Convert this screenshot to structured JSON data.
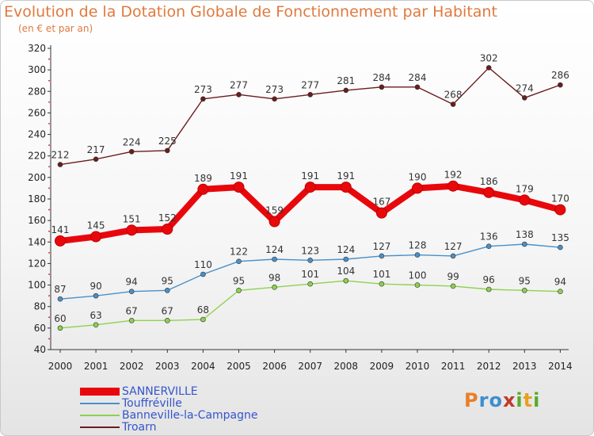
{
  "title": "Evolution de la Dotation Globale de Fonctionnement par Habitant",
  "subtitle": "(en € et par an)",
  "brand": "Proxiti",
  "chart_data": {
    "type": "line",
    "x": [
      "2000",
      "2001",
      "2002",
      "2003",
      "2004",
      "2005",
      "2006",
      "2007",
      "2008",
      "2009",
      "2010",
      "2011",
      "2012",
      "2013",
      "2014"
    ],
    "ylim": [
      40,
      320
    ],
    "yticks": [
      40,
      60,
      80,
      100,
      120,
      140,
      160,
      180,
      200,
      220,
      240,
      260,
      280,
      300,
      320
    ],
    "grid": false,
    "legend_position": "bottom-left",
    "series": [
      {
        "name": "SANNERVILLE",
        "color": "#e8080c",
        "values": [
          141,
          145,
          151,
          152,
          189,
          191,
          159,
          191,
          191,
          167,
          190,
          192,
          186,
          179,
          170
        ]
      },
      {
        "name": "Touffréville",
        "color": "#4a90c8",
        "values": [
          87,
          90,
          94,
          95,
          110,
          122,
          124,
          123,
          124,
          127,
          128,
          127,
          136,
          138,
          135
        ]
      },
      {
        "name": "Banneville-la-Campagne",
        "color": "#8fd14f",
        "values": [
          60,
          63,
          67,
          67,
          68,
          95,
          98,
          101,
          104,
          101,
          100,
          99,
          96,
          95,
          94
        ]
      },
      {
        "name": "Troarn",
        "color": "#6b1c1c",
        "values": [
          212,
          217,
          224,
          225,
          273,
          277,
          273,
          277,
          281,
          284,
          284,
          268,
          302,
          274,
          286
        ]
      }
    ]
  }
}
